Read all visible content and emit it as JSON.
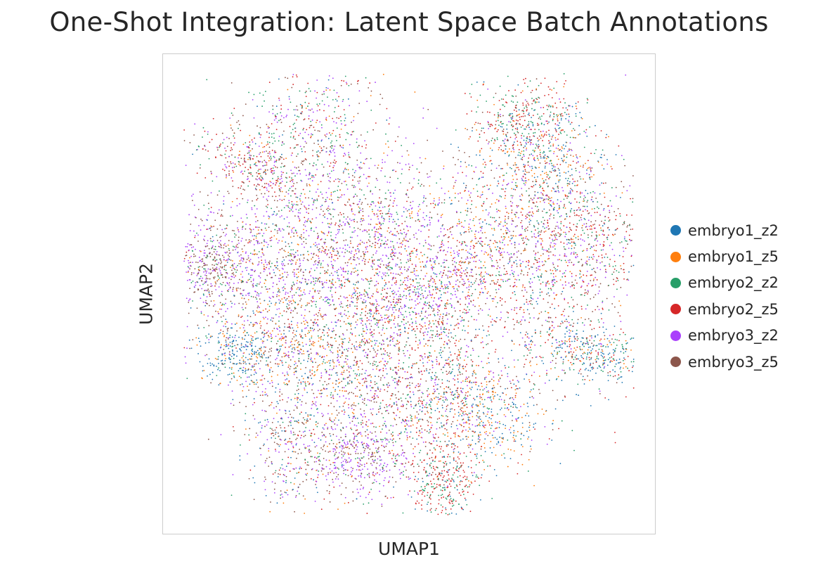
{
  "chart_data": {
    "type": "scatter",
    "title": "One-Shot Integration: Latent Space Batch Annotations",
    "xlabel": "UMAP1",
    "ylabel": "UMAP2",
    "grid": false,
    "legend_position": "right",
    "x_ticks": [],
    "y_ticks": [],
    "series": [
      {
        "name": "embryo1_z2",
        "color": "#1f77b4"
      },
      {
        "name": "embryo1_z5",
        "color": "#ff7f0e"
      },
      {
        "name": "embryo2_z2",
        "color": "#279e68"
      },
      {
        "name": "embryo2_z5",
        "color": "#d62728"
      },
      {
        "name": "embryo3_z2",
        "color": "#aa40fc"
      },
      {
        "name": "embryo3_z5",
        "color": "#8c564b"
      }
    ]
  }
}
